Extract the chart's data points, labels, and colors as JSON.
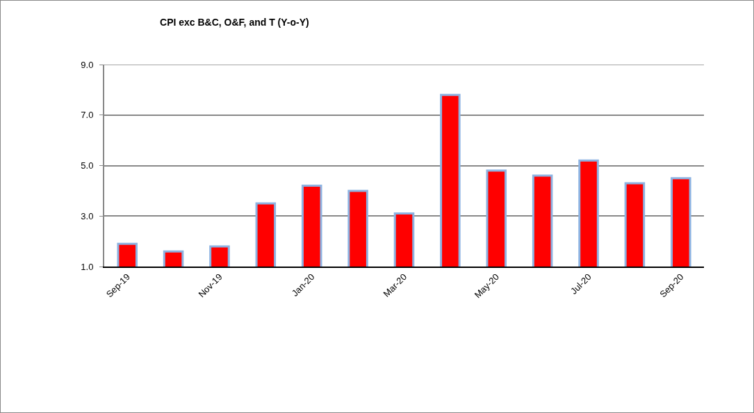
{
  "chart_data": {
    "type": "bar",
    "title": "CPI exc B&C, O&F, and T (Y-o-Y)",
    "categories": [
      "Sep-19",
      null,
      "Nov-19",
      null,
      "Jan-20",
      null,
      "Mar-20",
      null,
      "May-20",
      null,
      "Jul-20",
      null,
      "Sep-20"
    ],
    "series": [
      {
        "color": "#ff0000",
        "values": [
          1.9,
          1.6,
          1.8,
          3.5,
          4.2,
          4.0,
          3.1,
          7.8,
          4.8,
          4.6,
          5.2,
          4.3,
          4.5
        ]
      }
    ],
    "ylim": [
      1,
      9
    ],
    "yticks": [
      {
        "value": 1,
        "label": "1.0"
      },
      {
        "value": 3,
        "label": "3.0"
      },
      {
        "value": 5,
        "label": "5.0"
      },
      {
        "value": 7,
        "label": "7.0"
      },
      {
        "value": 9,
        "label": "9.0"
      }
    ],
    "grid": "y"
  }
}
